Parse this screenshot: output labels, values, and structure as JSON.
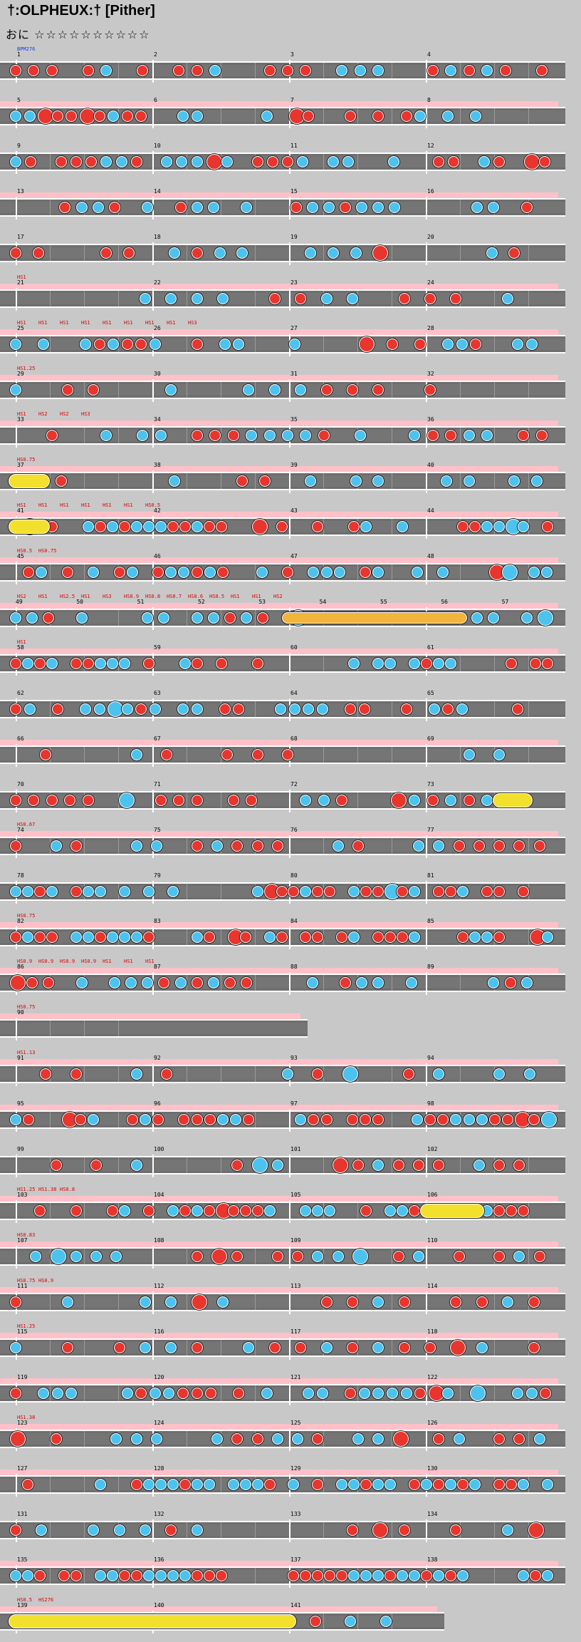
{
  "header": {
    "title": "†:OLPHEUX:† [Pither]",
    "difficulty_label": "おに",
    "level_stars": "☆☆☆☆☆☆☆☆☆☆"
  },
  "chart": {
    "bpm_label": "BPM276",
    "end_label": "HS276",
    "rows": [
      {
        "measures": [
          "1",
          "2",
          "3",
          "4"
        ],
        "cmds": []
      },
      {
        "measures": [
          "5",
          "6",
          "7",
          "8"
        ],
        "cmds": []
      },
      {
        "measures": [
          "9",
          "10",
          "11",
          "12"
        ],
        "cmds": []
      },
      {
        "measures": [
          "13",
          "14",
          "15",
          "16"
        ],
        "cmds": []
      },
      {
        "measures": [
          "17",
          "18",
          "19",
          "20"
        ],
        "cmds": []
      },
      {
        "measures": [
          "21",
          "22",
          "23",
          "24"
        ],
        "cmds": [
          "HS1"
        ]
      },
      {
        "measures": [
          "25",
          "26",
          "27",
          "28"
        ],
        "cmds": [
          "HS1",
          "HS1",
          "HS1",
          "HS1",
          "HS1",
          "HS1",
          "HS1",
          "HS1",
          "HS3"
        ]
      },
      {
        "measures": [
          "29",
          "30",
          "31",
          "32"
        ],
        "cmds": [
          "HS1.25"
        ]
      },
      {
        "measures": [
          "33",
          "34",
          "35",
          "36"
        ],
        "cmds": [
          "HS1",
          "HS2",
          "HS2",
          "HS3"
        ]
      },
      {
        "measures": [
          "37",
          "38",
          "39",
          "40"
        ],
        "cmds": [
          "HS0.75"
        ]
      },
      {
        "measures": [
          "41",
          "42",
          "43",
          "44"
        ],
        "cmds": [
          "HS1",
          "HS1",
          "HS1",
          "HS1",
          "HS1",
          "HS1",
          "HS0.5"
        ]
      },
      {
        "measures": [
          "45",
          "46",
          "47",
          "48"
        ],
        "cmds": [
          "HS0.5",
          "HS0.75"
        ]
      },
      {
        "measures": [
          "49",
          "50",
          "51",
          "52",
          "53",
          "54",
          "55",
          "56",
          "57"
        ],
        "cmds": [
          "HS2",
          "HS1",
          "HS2.5",
          "HS1",
          "HS3",
          "HS0.9",
          "HS0.8",
          "HS0.7",
          "HS0.6",
          "HS0.5",
          "HS1",
          "HS1",
          "HS2"
        ]
      },
      {
        "measures": [
          "58",
          "59",
          "60",
          "61"
        ],
        "cmds": [
          "HS1"
        ]
      },
      {
        "measures": [
          "62",
          "63",
          "64",
          "65"
        ],
        "cmds": []
      },
      {
        "measures": [
          "66",
          "67",
          "68",
          "69"
        ],
        "cmds": []
      },
      {
        "measures": [
          "70",
          "71",
          "72",
          "73"
        ],
        "cmds": []
      },
      {
        "measures": [
          "74",
          "75",
          "76",
          "77"
        ],
        "cmds": [
          "HS0.67"
        ]
      },
      {
        "measures": [
          "78",
          "79",
          "80",
          "81"
        ],
        "cmds": []
      },
      {
        "measures": [
          "82",
          "83",
          "84",
          "85"
        ],
        "cmds": [
          "HS0.75"
        ]
      },
      {
        "measures": [
          "86",
          "87",
          "88",
          "89"
        ],
        "cmds": [
          "HS0.9",
          "HS0.9",
          "HS0.9",
          "HS0.9",
          "HS1",
          "HS1",
          "HS1"
        ]
      },
      {
        "measures": [
          "90"
        ],
        "cmds": [
          "HS0.75"
        ]
      },
      {
        "measures": [
          "91",
          "92",
          "93",
          "94"
        ],
        "cmds": [
          "HS1.13"
        ]
      },
      {
        "measures": [
          "95",
          "96",
          "97",
          "98"
        ],
        "cmds": []
      },
      {
        "measures": [
          "99",
          "100",
          "101",
          "102"
        ],
        "cmds": []
      },
      {
        "measures": [
          "103",
          "104",
          "105",
          "106"
        ],
        "cmds": [
          "HS1.25",
          "HS1.38",
          "HS0.8"
        ]
      },
      {
        "measures": [
          "107",
          "108",
          "109",
          "110"
        ],
        "cmds": [
          "HS0.83"
        ]
      },
      {
        "measures": [
          "111",
          "112",
          "113",
          "114"
        ],
        "cmds": [
          "HS0.75",
          "HS0.9"
        ]
      },
      {
        "measures": [
          "115",
          "116",
          "117",
          "118"
        ],
        "cmds": [
          "HS1.25"
        ]
      },
      {
        "measures": [
          "119",
          "120",
          "121",
          "122"
        ],
        "cmds": []
      },
      {
        "measures": [
          "123",
          "124",
          "125",
          "126"
        ],
        "cmds": [
          "HS1.38"
        ]
      },
      {
        "measures": [
          "127",
          "128",
          "129",
          "130"
        ],
        "cmds": []
      },
      {
        "measures": [
          "131",
          "132",
          "133",
          "134"
        ],
        "cmds": []
      },
      {
        "measures": [
          "135",
          "136",
          "137",
          "138"
        ],
        "cmds": []
      },
      {
        "measures": [
          "139",
          "140",
          "141"
        ],
        "cmds": [
          "HS0.5",
          "HS276"
        ]
      }
    ]
  },
  "colors": {
    "don": "#e8352e",
    "ka": "#4cc3ee",
    "roll": "#f2e02c",
    "balloon": "#f3b43a",
    "lane": "#757575"
  }
}
